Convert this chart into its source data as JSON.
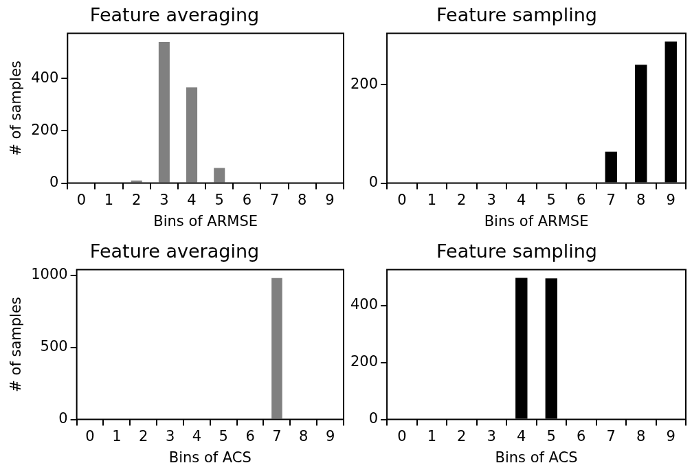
{
  "chart_data": [
    {
      "type": "bar",
      "title": "Feature averaging",
      "xlabel": "Bins of ARMSE",
      "ylabel": "# of samples",
      "categories": [
        "0",
        "1",
        "2",
        "3",
        "4",
        "5",
        "6",
        "7",
        "8",
        "9"
      ],
      "values": [
        0,
        0,
        10,
        540,
        366,
        58,
        0,
        0,
        0,
        0
      ],
      "color": "#808080",
      "ylim": [
        0,
        573
      ],
      "yticks": [
        0,
        200,
        400
      ],
      "grid": false
    },
    {
      "type": "bar",
      "title": "Feature sampling",
      "xlabel": "Bins of ARMSE",
      "categories": [
        "0",
        "1",
        "2",
        "3",
        "4",
        "5",
        "6",
        "7",
        "8",
        "9"
      ],
      "values": [
        0,
        0,
        0,
        0,
        0,
        0,
        0,
        64,
        240,
        287
      ],
      "color": "#000000",
      "ylim": [
        0,
        304
      ],
      "yticks": [
        0,
        200
      ],
      "grid": false
    },
    {
      "type": "bar",
      "title": "Feature averaging",
      "xlabel": "Bins of ACS",
      "ylabel": "# of samples",
      "categories": [
        "0",
        "1",
        "2",
        "3",
        "4",
        "5",
        "6",
        "7",
        "8",
        "9"
      ],
      "values": [
        0,
        0,
        0,
        0,
        0,
        0,
        0,
        980,
        0,
        0
      ],
      "color": "#808080",
      "ylim": [
        0,
        1039
      ],
      "yticks": [
        0,
        500,
        1000
      ],
      "grid": false
    },
    {
      "type": "bar",
      "title": "Feature sampling",
      "xlabel": "Bins of ACS",
      "categories": [
        "0",
        "1",
        "2",
        "3",
        "4",
        "5",
        "6",
        "7",
        "8",
        "9"
      ],
      "values": [
        0,
        0,
        0,
        0,
        497,
        495,
        0,
        0,
        0,
        0
      ],
      "color": "#000000",
      "ylim": [
        0,
        526
      ],
      "yticks": [
        0,
        200,
        400
      ],
      "grid": false
    }
  ]
}
